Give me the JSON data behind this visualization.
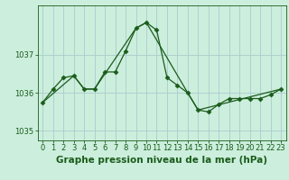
{
  "title": "Graphe pression niveau de la mer (hPa)",
  "background_color": "#cceedd",
  "grid_color": "#aacccc",
  "line_color": "#1a5c1a",
  "marker_color": "#1a5c1a",
  "x_labels": [
    "0",
    "1",
    "2",
    "3",
    "4",
    "5",
    "6",
    "7",
    "8",
    "9",
    "10",
    "11",
    "12",
    "13",
    "14",
    "15",
    "16",
    "17",
    "18",
    "19",
    "20",
    "21",
    "22",
    "23"
  ],
  "series1_x": [
    0,
    1,
    2,
    3,
    4,
    5,
    6,
    7,
    8,
    9,
    10,
    11,
    12,
    13,
    14,
    15,
    16,
    17,
    18,
    19,
    20,
    21,
    22,
    23
  ],
  "series1_y": [
    1035.75,
    1036.1,
    1036.4,
    1036.45,
    1036.1,
    1036.1,
    1036.55,
    1036.55,
    1037.1,
    1037.7,
    1037.85,
    1037.65,
    1036.4,
    1036.2,
    1036.0,
    1035.55,
    1035.5,
    1035.7,
    1035.85,
    1035.85,
    1035.85,
    1035.85,
    1035.95,
    1036.1
  ],
  "series2_x": [
    0,
    3,
    4,
    5,
    9,
    10,
    14,
    15,
    23
  ],
  "series2_y": [
    1035.75,
    1036.45,
    1036.1,
    1036.1,
    1037.7,
    1037.85,
    1036.0,
    1035.55,
    1036.1
  ],
  "yticks": [
    1035,
    1036,
    1037
  ],
  "ylim": [
    1034.75,
    1038.3
  ],
  "xlim": [
    -0.5,
    23.5
  ],
  "title_fontsize": 7.5,
  "tick_fontsize": 6.0
}
